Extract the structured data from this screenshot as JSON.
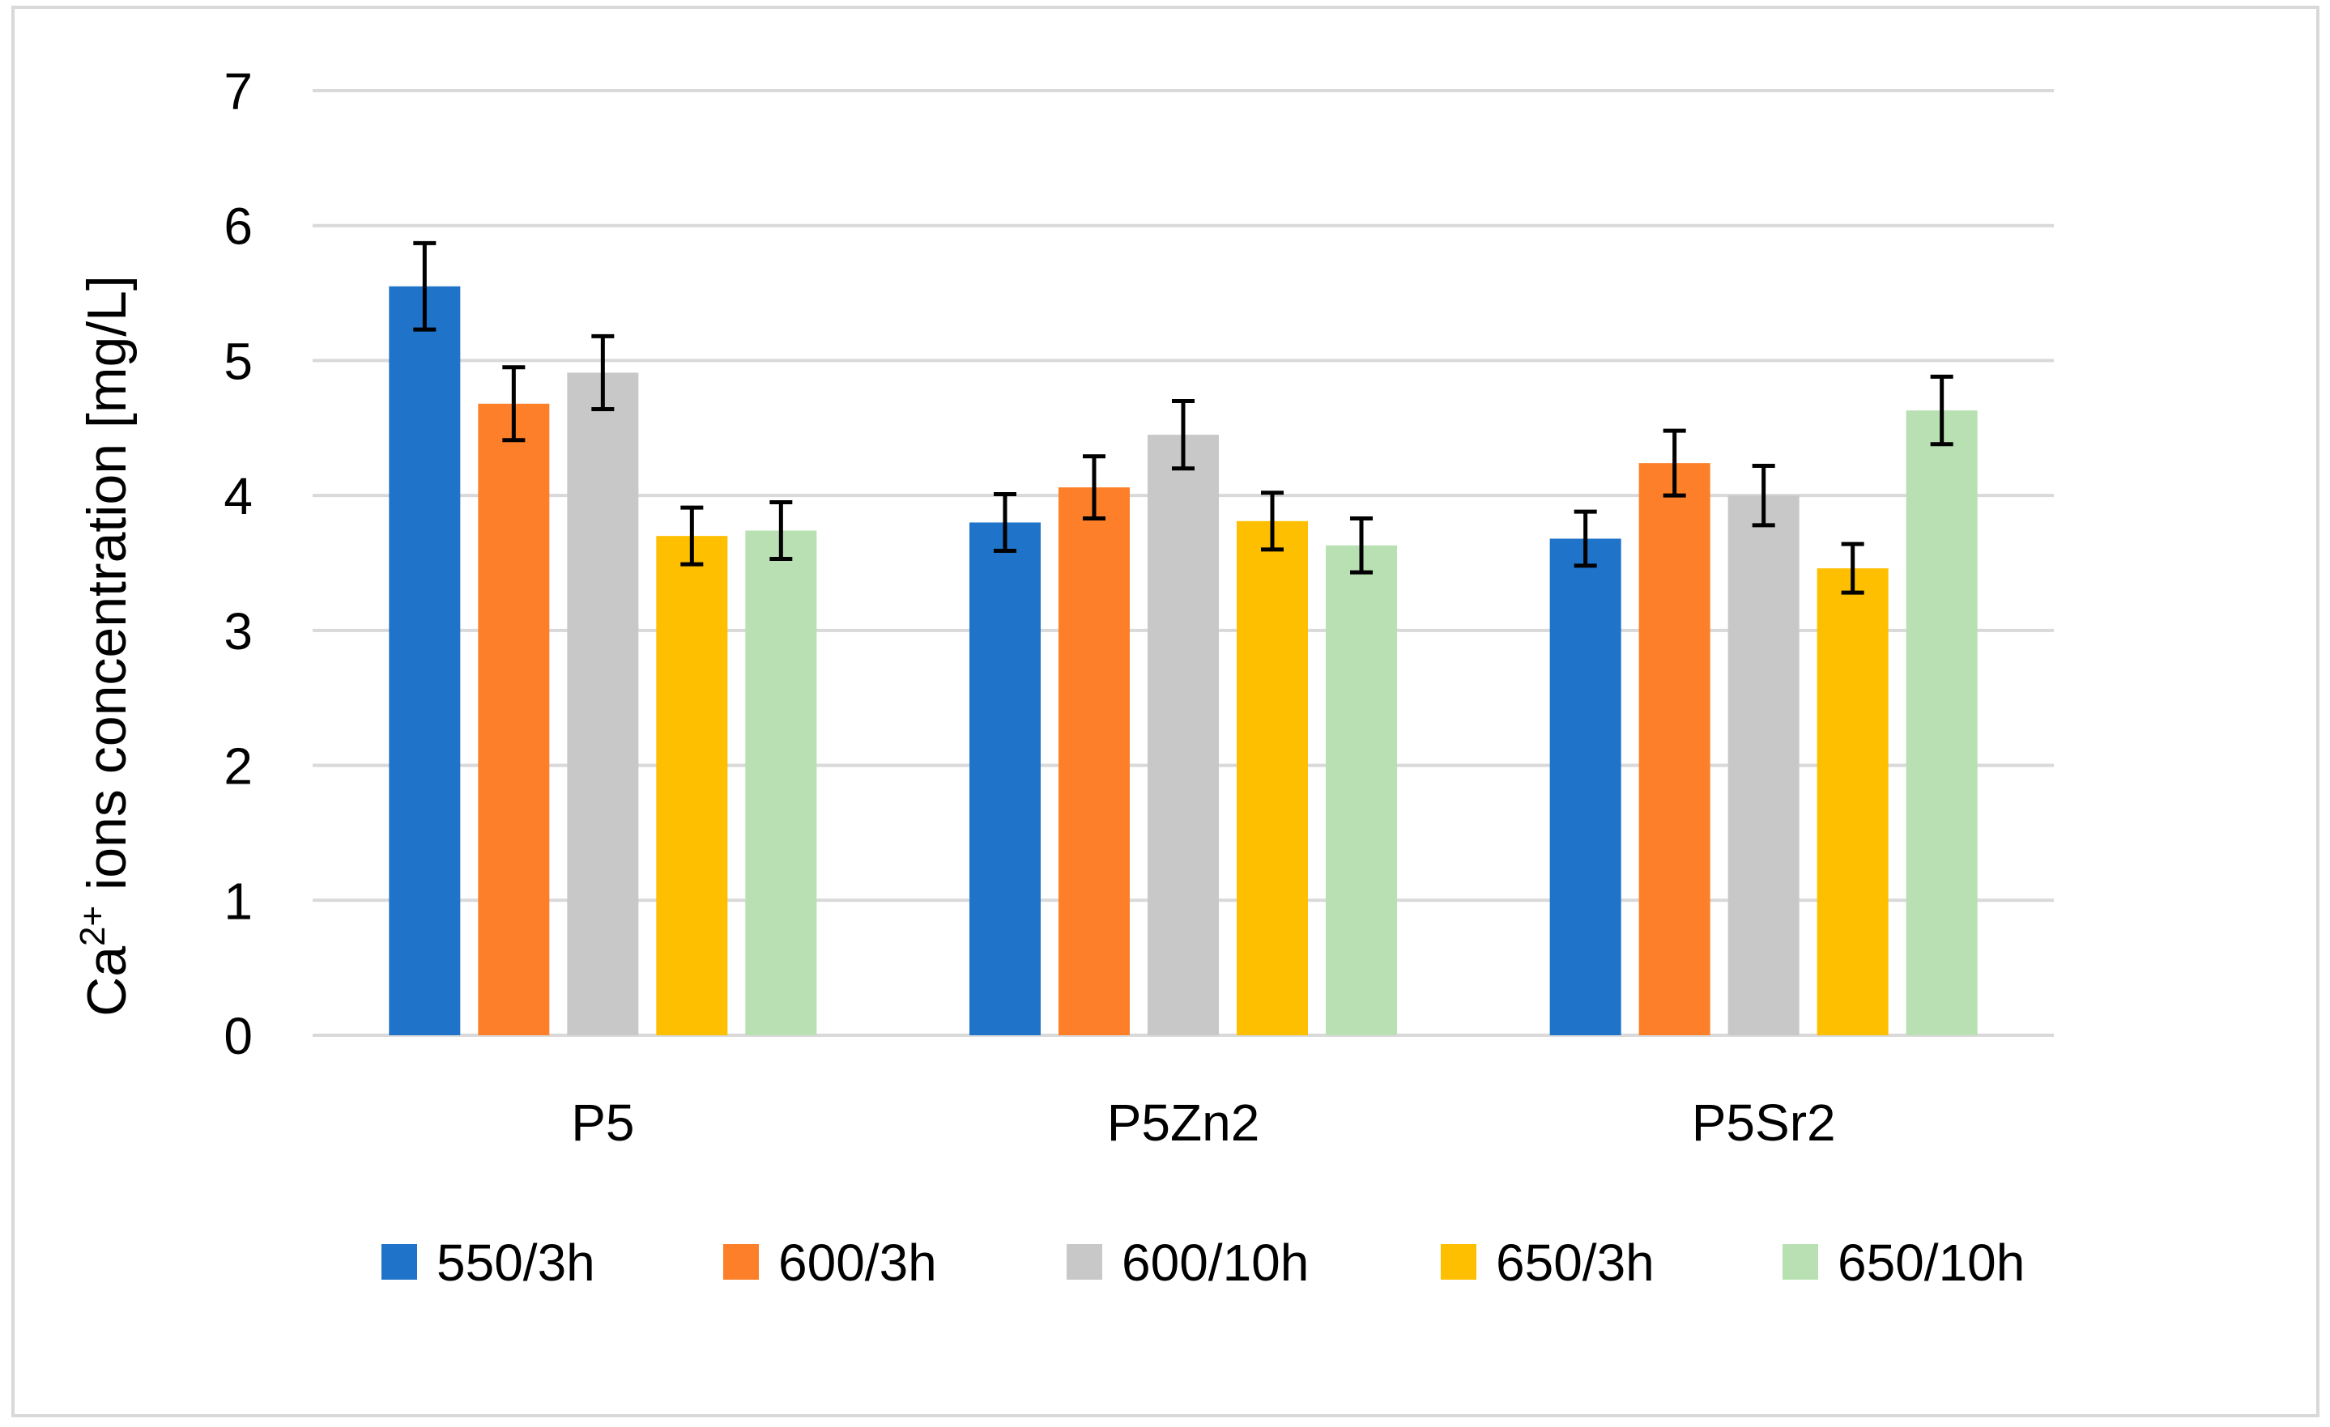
{
  "chart_data": {
    "type": "bar",
    "title": "",
    "xlabel": "",
    "ylabel": {
      "prefix": "Ca",
      "sup": "2+",
      "suffix": " ions concentration [mg/L]"
    },
    "ylim": [
      0,
      7
    ],
    "yticks": [
      "0",
      "1",
      "2",
      "3",
      "4",
      "5",
      "6",
      "7"
    ],
    "grid": true,
    "legend_position": "bottom",
    "categories": [
      "P5",
      "P5Zn2",
      "P5Sr2"
    ],
    "series": [
      {
        "name": "550/3h",
        "color": "#1f74c9",
        "values": [
          5.55,
          3.8,
          3.68
        ],
        "errors": [
          0.32,
          0.21,
          0.2
        ]
      },
      {
        "name": "600/3h",
        "color": "#fd7f2a",
        "values": [
          4.68,
          4.06,
          4.24
        ],
        "errors": [
          0.27,
          0.23,
          0.24
        ]
      },
      {
        "name": "600/10h",
        "color": "#c8c8c8",
        "values": [
          4.91,
          4.45,
          4.0
        ],
        "errors": [
          0.27,
          0.25,
          0.22
        ]
      },
      {
        "name": "650/3h",
        "color": "#fdbf00",
        "values": [
          3.7,
          3.81,
          3.46
        ],
        "errors": [
          0.21,
          0.21,
          0.18
        ]
      },
      {
        "name": "650/10h",
        "color": "#b8e0b2",
        "values": [
          3.74,
          3.63,
          4.63
        ],
        "errors": [
          0.21,
          0.2,
          0.25
        ]
      }
    ]
  }
}
